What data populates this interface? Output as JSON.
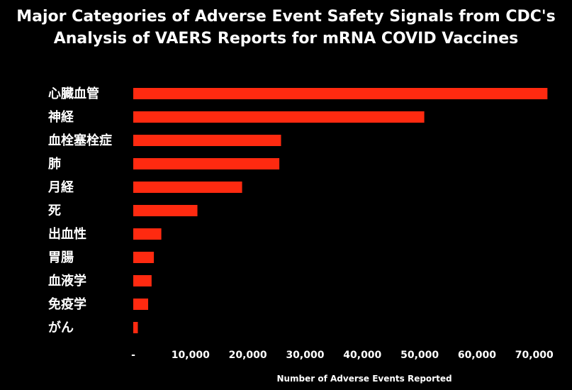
{
  "chart_data": {
    "type": "bar",
    "orientation": "horizontal",
    "title_line1": "Major Categories of Adverse Event Safety Signals from CDC's",
    "title_line2": "Analysis of VAERS Reports for mRNA COVID Vaccines",
    "categories": [
      "心臓血管",
      "神経",
      "血栓塞栓症",
      "肺",
      "月経",
      "死",
      "出血性",
      "胃腸",
      "血液学",
      "免疫学",
      "がん"
    ],
    "values": [
      72300,
      50800,
      25800,
      25500,
      19000,
      11200,
      4900,
      3600,
      3200,
      2600,
      800
    ],
    "xlabel": "Number of Adverse Events Reported",
    "ylabel": "",
    "xlim": [
      0,
      73000
    ],
    "xticks": [
      0,
      10000,
      20000,
      30000,
      40000,
      50000,
      60000,
      70000
    ],
    "xtick_labels": [
      "-",
      "10,000",
      "20,000",
      "30,000",
      "40,000",
      "50,000",
      "60,000",
      "70,000"
    ],
    "grid": false,
    "legend": "none",
    "colors": {
      "bar": "#ff2a10",
      "background": "#000000",
      "text": "#ffffff"
    }
  }
}
